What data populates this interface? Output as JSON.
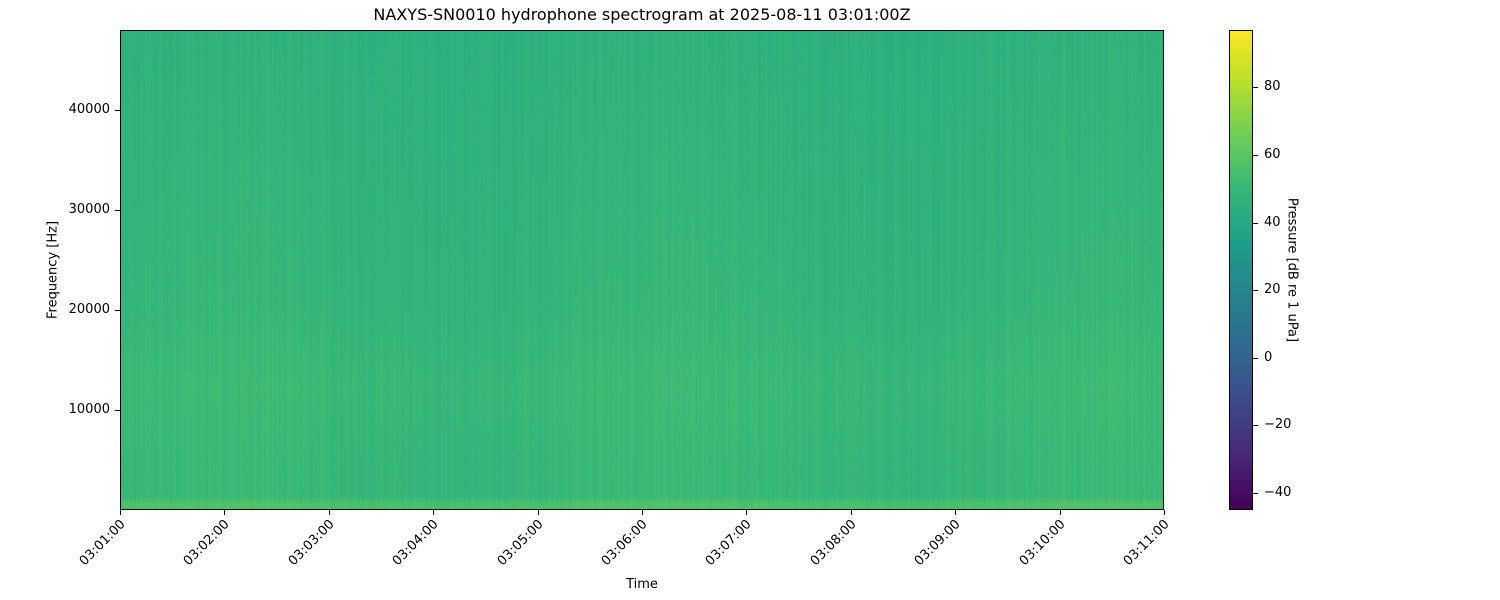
{
  "chart_data": {
    "type": "heatmap",
    "title": "NAXYS-SN0010 hydrophone spectrogram at 2025-08-11 03:01:00Z",
    "xlabel": "Time",
    "ylabel": "Frequency [Hz]",
    "xlim": [
      "03:01:00",
      "03:11:00"
    ],
    "ylim": [
      0,
      48000
    ],
    "x_ticks": [
      "03:01:00",
      "03:02:00",
      "03:03:00",
      "03:04:00",
      "03:05:00",
      "03:06:00",
      "03:07:00",
      "03:08:00",
      "03:09:00",
      "03:10:00",
      "03:11:00"
    ],
    "y_ticks": [
      10000,
      20000,
      30000,
      40000
    ],
    "colormap": "viridis",
    "colorbar": {
      "label": "Pressure [dB re 1 uPa]",
      "range": [
        -45,
        97
      ],
      "ticks": [
        -40,
        -20,
        0,
        20,
        40,
        60,
        80
      ]
    },
    "frequency_profile_db": [
      {
        "freq_hz": 500,
        "db": 56
      },
      {
        "freq_hz": 1200,
        "db": 50
      },
      {
        "freq_hz": 5000,
        "db": 50
      },
      {
        "freq_hz": 12500,
        "db": 51
      },
      {
        "freq_hz": 20000,
        "db": 49
      },
      {
        "freq_hz": 30000,
        "db": 48
      },
      {
        "freq_hz": 40000,
        "db": 47
      },
      {
        "freq_hz": 47000,
        "db": 46
      }
    ],
    "grid": false
  }
}
